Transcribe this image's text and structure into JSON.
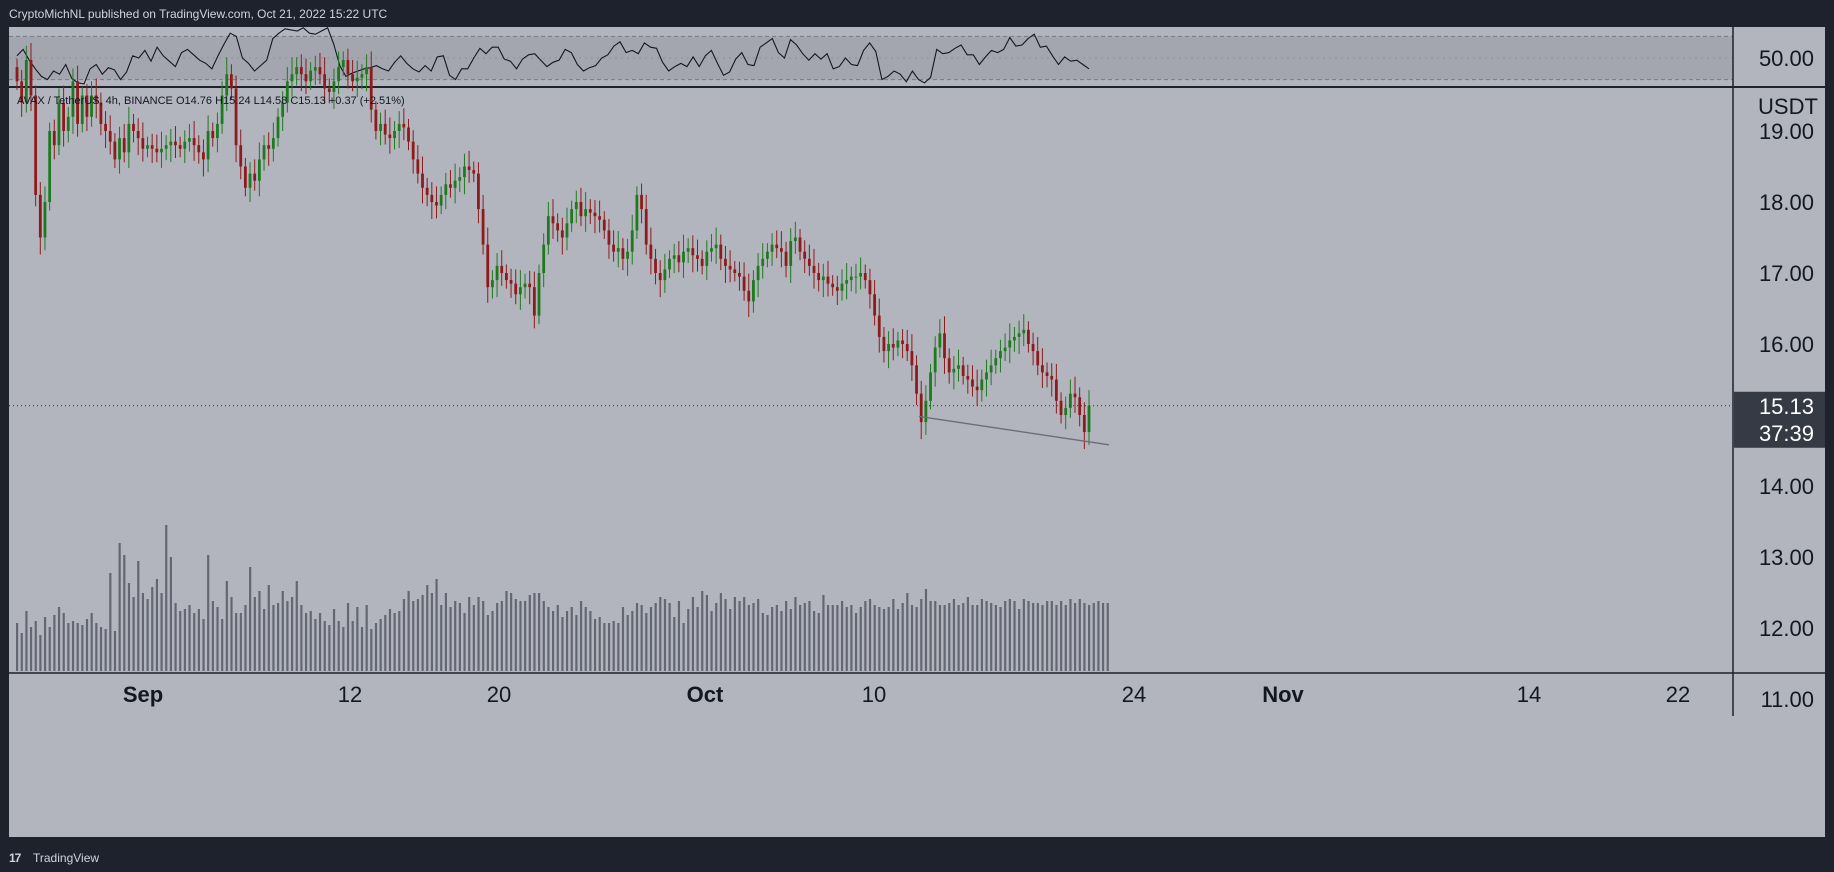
{
  "header": {
    "published_text": "CryptoMichNL published on TradingView.com, Oct 21, 2022 15:22 UTC"
  },
  "footer": {
    "logo_glyph": "17",
    "brand": "TradingView"
  },
  "colors": {
    "panel_bg": "#b2b5be",
    "up": "#1f7a1f",
    "down": "#8e1b1b",
    "volume": "#4a4e59",
    "line": "#131722",
    "frame": "#1e222d"
  },
  "chart_data": [
    {
      "type": "line",
      "title": "",
      "indicator": "RSI",
      "ylim": [
        25,
        75
      ],
      "band": [
        30,
        70
      ],
      "y_tick": "50.00",
      "values": [
        52,
        58,
        48,
        40,
        33,
        30,
        38,
        35,
        44,
        31,
        27,
        26,
        40,
        44,
        35,
        41,
        39,
        30,
        37,
        52,
        50,
        57,
        47,
        60,
        52,
        47,
        42,
        55,
        58,
        53,
        48,
        45,
        40,
        52,
        63,
        73,
        70,
        50,
        45,
        38,
        43,
        48,
        68,
        73,
        77,
        76,
        75,
        78,
        73,
        72,
        75,
        78,
        63,
        43,
        33,
        36,
        38,
        40,
        41,
        43,
        40,
        38,
        46,
        52,
        45,
        40,
        37,
        43,
        38,
        51,
        52,
        34,
        30,
        40,
        40,
        50,
        59,
        54,
        60,
        60,
        49,
        47,
        40,
        49,
        53,
        54,
        48,
        42,
        46,
        48,
        58,
        55,
        44,
        38,
        41,
        43,
        50,
        53,
        61,
        65,
        55,
        57,
        54,
        64,
        60,
        59,
        46,
        38,
        42,
        45,
        42,
        51,
        42,
        52,
        57,
        45,
        34,
        37,
        49,
        55,
        44,
        43,
        60,
        64,
        68,
        55,
        50,
        67,
        62,
        54,
        48,
        54,
        49,
        54,
        40,
        42,
        50,
        44,
        43,
        57,
        64,
        56,
        30,
        33,
        38,
        35,
        28,
        38,
        30,
        27,
        32,
        58,
        54,
        55,
        59,
        62,
        53,
        53,
        44,
        51,
        57,
        55,
        58,
        69,
        61,
        62,
        68,
        72,
        60,
        61,
        52,
        44,
        51,
        47,
        48,
        44,
        40
      ]
    },
    {
      "type": "candlestick",
      "title": "",
      "legend": {
        "symbol": "AVAX / TetherUS, 4h, BINANCE",
        "o": "O14.76",
        "h": "H15.24",
        "l": "L14.58",
        "c": "C15.13",
        "chg": "+0.37 (+2.51%)"
      },
      "ylabel": "USDT",
      "ylim": [
        10.6,
        19.5
      ],
      "y_ticks": [
        "19.00",
        "18.00",
        "17.00",
        "16.00",
        "15.00",
        "14.00",
        "13.00",
        "12.00",
        "11.00"
      ],
      "x_ticks": [
        "Sep",
        "12",
        "20",
        "Oct",
        "10",
        "24",
        "Nov",
        "14",
        "22"
      ],
      "last_price": "15.13",
      "countdown": "37:39",
      "closes": [
        19.7,
        19.4,
        20.0,
        19.5,
        18.1,
        17.5,
        18.0,
        19.0,
        18.8,
        19.4,
        19.0,
        19.2,
        19.7,
        19.1,
        19.5,
        19.2,
        19.5,
        19.4,
        19.1,
        19.0,
        18.85,
        18.6,
        18.9,
        18.7,
        19.1,
        19.0,
        18.9,
        18.75,
        18.8,
        18.75,
        18.7,
        18.75,
        18.8,
        18.85,
        18.8,
        18.75,
        18.85,
        18.9,
        18.8,
        18.7,
        18.6,
        19.0,
        18.9,
        19.1,
        19.5,
        19.8,
        19.6,
        18.8,
        18.5,
        18.2,
        18.4,
        18.3,
        18.6,
        18.8,
        18.75,
        18.9,
        19.2,
        19.4,
        19.7,
        19.8,
        19.9,
        19.8,
        19.7,
        19.85,
        19.9,
        19.8,
        19.6,
        19.55,
        19.7,
        19.9,
        20.0,
        19.8,
        19.7,
        19.75,
        19.8,
        19.9,
        19.3,
        19.0,
        19.1,
        18.95,
        18.9,
        19.0,
        19.1,
        19.05,
        18.85,
        18.6,
        18.4,
        18.2,
        18.1,
        18.0,
        17.95,
        18.1,
        18.25,
        18.2,
        18.3,
        18.35,
        18.5,
        18.45,
        18.4,
        17.9,
        17.4,
        16.8,
        16.9,
        17.1,
        17.0,
        16.9,
        16.85,
        16.7,
        16.8,
        16.85,
        16.8,
        16.4,
        17.0,
        17.4,
        17.8,
        17.7,
        17.6,
        17.5,
        17.7,
        17.9,
        18.0,
        17.8,
        17.9,
        17.85,
        17.8,
        17.75,
        17.6,
        17.4,
        17.3,
        17.35,
        17.2,
        17.3,
        17.6,
        18.1,
        17.9,
        17.4,
        17.2,
        17.0,
        16.9,
        17.05,
        17.2,
        17.25,
        17.15,
        17.3,
        17.35,
        17.25,
        17.2,
        17.1,
        17.3,
        17.35,
        17.4,
        17.2,
        17.1,
        17.05,
        17.0,
        16.95,
        16.75,
        16.6,
        16.9,
        17.1,
        17.2,
        17.3,
        17.4,
        17.35,
        17.3,
        17.1,
        17.45,
        17.5,
        17.3,
        17.2,
        17.1,
        17.0,
        16.9,
        16.95,
        16.85,
        16.8,
        16.75,
        16.85,
        16.9,
        16.95,
        16.95,
        17.0,
        16.9,
        16.7,
        16.4,
        16.1,
        15.9,
        16.0,
        15.95,
        16.05,
        16.0,
        15.9,
        15.7,
        15.3,
        14.9,
        15.2,
        15.6,
        15.95,
        16.15,
        15.8,
        15.6,
        15.65,
        15.7,
        15.55,
        15.5,
        15.4,
        15.35,
        15.5,
        15.6,
        15.7,
        15.8,
        15.9,
        15.95,
        16.05,
        16.1,
        16.15,
        16.2,
        16.0,
        15.9,
        15.7,
        15.6,
        15.55,
        15.5,
        15.2,
        15.0,
        15.1,
        15.3,
        15.25,
        15.0,
        14.76,
        15.13
      ],
      "volumes": [
        2.4,
        1.9,
        3.0,
        2.2,
        2.5,
        1.8,
        2.7,
        2.2,
        2.8,
        3.2,
        2.9,
        2.4,
        2.5,
        2.4,
        2.3,
        2.6,
        2.9,
        2.4,
        2.2,
        2.1,
        4.9,
        2.0,
        6.4,
        5.8,
        4.4,
        3.7,
        5.5,
        3.9,
        3.6,
        4.2,
        4.6,
        3.9,
        7.3,
        5.7,
        3.4,
        3.0,
        3.1,
        3.3,
        2.9,
        3.1,
        2.6,
        5.8,
        3.5,
        3.2,
        2.6,
        4.5,
        3.7,
        2.9,
        2.9,
        3.3,
        5.2,
        3.7,
        4.0,
        3.1,
        4.3,
        3.3,
        3.4,
        4.0,
        3.5,
        3.7,
        4.5,
        3.3,
        2.9,
        3.0,
        2.6,
        2.9,
        2.5,
        2.3,
        3.1,
        2.5,
        2.2,
        3.4,
        2.5,
        3.2,
        2.2,
        3.3,
        2.1,
        2.4,
        2.6,
        2.8,
        3.1,
        2.9,
        3.0,
        3.6,
        4.0,
        3.5,
        3.6,
        3.8,
        4.3,
        3.9,
        4.6,
        3.3,
        3.9,
        3.2,
        3.5,
        3.4,
        2.9,
        3.7,
        3.3,
        3.7,
        3.5,
        2.8,
        3.0,
        3.4,
        3.5,
        4.0,
        3.9,
        3.6,
        3.5,
        3.5,
        3.8,
        3.9,
        3.9,
        3.5,
        3.2,
        3.0,
        3.3,
        2.7,
        3.0,
        3.2,
        2.8,
        3.5,
        3.2,
        3.0,
        2.6,
        2.7,
        2.4,
        2.4,
        2.5,
        2.4,
        3.2,
        2.8,
        3.0,
        3.4,
        3.3,
        2.9,
        3.2,
        3.4,
        3.7,
        3.6,
        3.4,
        2.7,
        3.5,
        2.4,
        3.1,
        3.7,
        3.2,
        4.0,
        3.8,
        3.0,
        3.4,
        3.9,
        3.6,
        3.1,
        3.7,
        3.5,
        3.7,
        3.3,
        3.4,
        3.6,
        2.9,
        2.8,
        3.2,
        3.3,
        3.0,
        3.5,
        3.1,
        3.7,
        3.3,
        3.4,
        3.5,
        3.0,
        2.9,
        3.8,
        3.3,
        3.3,
        3.3,
        3.5,
        3.2,
        3.3,
        2.9,
        3.2,
        3.5,
        3.6,
        3.3,
        3.2,
        3.1,
        3.2,
        3.6,
        3.1,
        3.4,
        3.9,
        3.3,
        3.2,
        3.6,
        4.1,
        3.5,
        3.5,
        3.3,
        3.3,
        3.4,
        3.6,
        3.3,
        3.4,
        3.7,
        3.3,
        3.3,
        3.6,
        3.5,
        3.4,
        3.3,
        3.2,
        3.5,
        3.6,
        3.5,
        3.1,
        3.6,
        3.5,
        3.4,
        3.4,
        3.3,
        3.5,
        3.5,
        3.3,
        3.5,
        3.3,
        3.6,
        3.4,
        3.6,
        3.4,
        3.3,
        3.4,
        3.5,
        3.4,
        3.4
      ]
    }
  ]
}
